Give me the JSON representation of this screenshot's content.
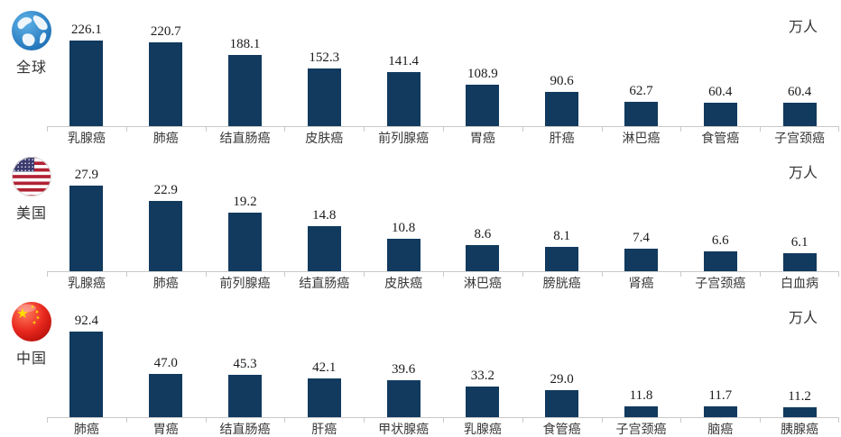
{
  "page": {
    "background": "#ffffff"
  },
  "colors": {
    "bar": "#113a5e",
    "axis": "#c9c9c9",
    "value_text": "#1a1a1a",
    "category_text": "#383838",
    "globe_blue": "#1b6cb3",
    "usa_red": "#b22234",
    "usa_blue": "#3c3b6e",
    "china_red": "#d7160f",
    "china_yellow": "#ffde00"
  },
  "chart_data": [
    {
      "type": "bar",
      "region": "全球",
      "icon": "globe-icon",
      "unit": "万人",
      "categories": [
        "乳腺癌",
        "肺癌",
        "结直肠癌",
        "皮肤癌",
        "前列腺癌",
        "胃癌",
        "肝癌",
        "淋巴癌",
        "食管癌",
        "子宫颈癌"
      ],
      "values": [
        226.1,
        220.7,
        188.1,
        152.3,
        141.4,
        108.9,
        90.6,
        62.7,
        60.4,
        60.4
      ],
      "ylim": [
        0,
        240
      ],
      "grid": false,
      "legend": "none"
    },
    {
      "type": "bar",
      "region": "美国",
      "icon": "usa-flag-icon",
      "unit": "万人",
      "categories": [
        "乳腺癌",
        "肺癌",
        "前列腺癌",
        "结直肠癌",
        "皮肤癌",
        "淋巴癌",
        "膀胱癌",
        "肾癌",
        "子宫颈癌",
        "白血病"
      ],
      "values": [
        27.9,
        22.9,
        19.2,
        14.8,
        10.8,
        8.6,
        8.1,
        7.4,
        6.6,
        6.1
      ],
      "ylim": [
        0,
        30
      ],
      "grid": false,
      "legend": "none"
    },
    {
      "type": "bar",
      "region": "中国",
      "icon": "china-flag-icon",
      "unit": "万人",
      "categories": [
        "肺癌",
        "胃癌",
        "结直肠癌",
        "肝癌",
        "甲状腺癌",
        "乳腺癌",
        "食管癌",
        "子宫颈癌",
        "脑癌",
        "胰腺癌"
      ],
      "values": [
        92.4,
        47.0,
        45.3,
        42.1,
        39.6,
        33.2,
        29.0,
        11.8,
        11.7,
        11.2
      ],
      "ylim": [
        0,
        100
      ],
      "grid": false,
      "legend": "none"
    }
  ]
}
